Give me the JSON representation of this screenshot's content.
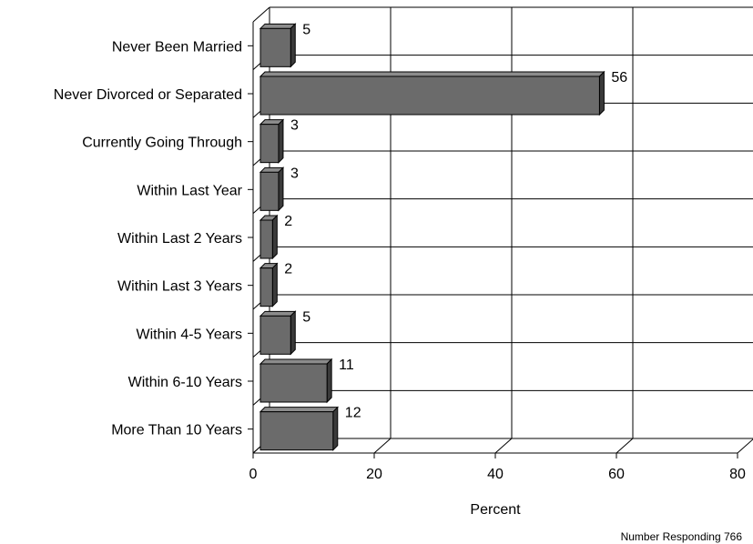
{
  "chart_data": {
    "type": "bar",
    "orientation": "horizontal",
    "style": "3d",
    "categories": [
      "Never Been Married",
      "Never Divorced or Separated",
      "Currently Going Through",
      "Within Last Year",
      "Within Last 2 Years",
      "Within Last 3 Years",
      "Within 4-5 Years",
      "Within 6-10 Years",
      "More Than 10 Years"
    ],
    "values": [
      5,
      56,
      3,
      3,
      2,
      2,
      5,
      11,
      12
    ],
    "xlabel": "Percent",
    "xlim": [
      0,
      80
    ],
    "xticks": [
      0,
      20,
      40,
      60,
      80
    ],
    "grid": true,
    "note": "Number Responding 766",
    "colors": {
      "bar_front": "#6b6b6b",
      "bar_top": "#8c8c8c",
      "bar_side": "#3a3a3a",
      "grid": "#000000"
    }
  }
}
